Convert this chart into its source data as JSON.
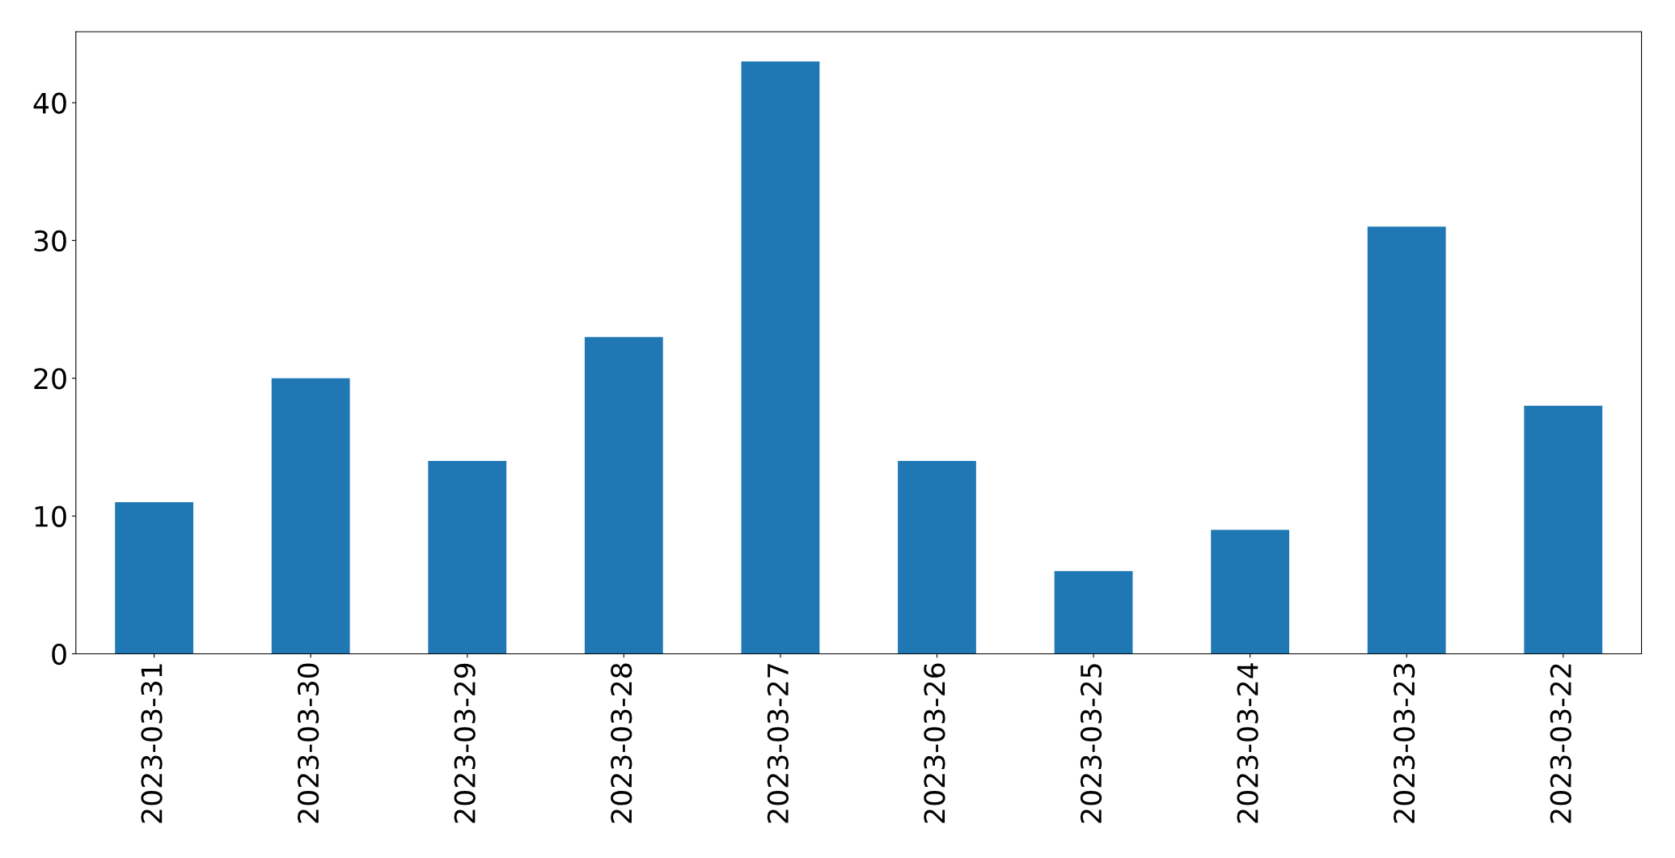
{
  "chart_data": {
    "type": "bar",
    "categories": [
      "2023-03-31",
      "2023-03-30",
      "2023-03-29",
      "2023-03-28",
      "2023-03-27",
      "2023-03-26",
      "2023-03-25",
      "2023-03-24",
      "2023-03-23",
      "2023-03-22"
    ],
    "values": [
      11,
      20,
      14,
      23,
      43,
      14,
      6,
      9,
      31,
      18
    ],
    "color": "#1f77b4",
    "ylim": [
      0,
      45.15
    ],
    "yticks": [
      0,
      10,
      20,
      30,
      40
    ],
    "grid": false,
    "legend": false
  }
}
